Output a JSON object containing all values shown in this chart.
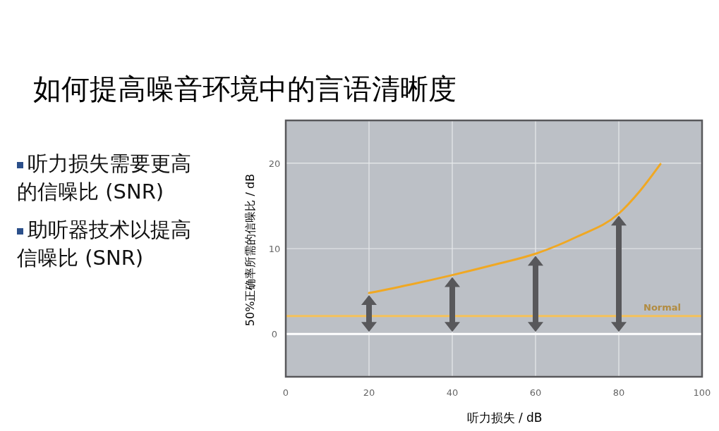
{
  "chart_data": {
    "type": "line",
    "title": "如何提高噪音环境中的言语清晰度",
    "xlabel": "听力损失 / dB",
    "ylabel": "50%正确率所需的信噪比 / dB",
    "x": [
      20,
      30,
      40,
      50,
      60,
      70,
      80,
      85,
      90
    ],
    "series": [
      {
        "color": "#f0a823",
        "values": [
          4.8,
          5.8,
          6.9,
          8.1,
          9.4,
          11.4,
          14.1,
          16.7,
          19.9
        ]
      }
    ],
    "xlim": [
      0,
      100
    ],
    "xticks": [
      0,
      20,
      40,
      60,
      80,
      100
    ],
    "ylim": [
      -5,
      25
    ],
    "yticks": [
      0,
      10,
      20
    ],
    "grid": true,
    "marker": "none",
    "line_style": "solid",
    "ref_lines": [
      {
        "axis": "y",
        "value": 2.1,
        "label": "Normal",
        "color": "#f5c15a"
      },
      {
        "axis": "y",
        "value": 0,
        "label": null,
        "color": "#ffffff"
      }
    ],
    "annotations": [
      "听力损失需要更高的信噪比 (SNR)",
      "助听器技术以提高信噪比 (SNR)"
    ]
  }
}
